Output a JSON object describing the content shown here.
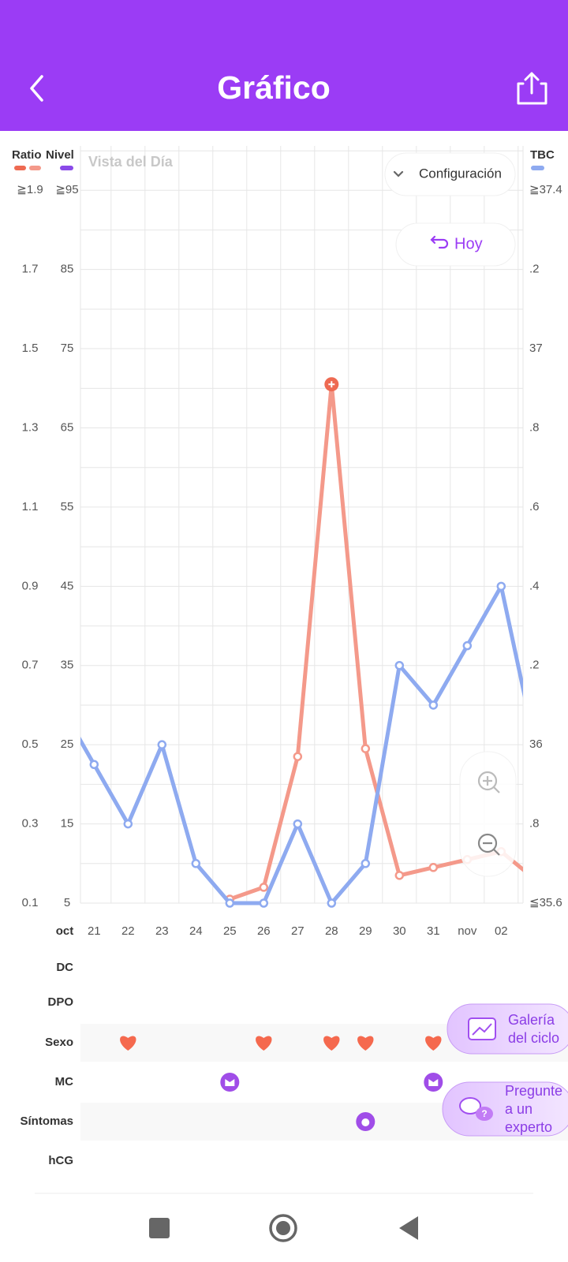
{
  "header": {
    "title": "Gráfico"
  },
  "buttons": {
    "config": "Configuración",
    "today": "Hoy",
    "view": "Vista del Día",
    "gallery": [
      "Galería",
      "del ciclo"
    ],
    "expert": [
      "Pregunte",
      "a un",
      "experto"
    ]
  },
  "chart_data": {
    "type": "line",
    "month_label": "oct",
    "categories": [
      null,
      "21",
      "22",
      "23",
      "24",
      "25",
      "26",
      "27",
      "28",
      "29",
      "30",
      "31",
      "nov",
      "02",
      null
    ],
    "y_label": "Ratio",
    "ylim": [
      0.1,
      2.0
    ],
    "yticks": [
      {
        "value": 1.9,
        "label": "≧1.9"
      },
      1.7,
      1.5,
      1.3,
      1.1,
      0.9,
      0.7,
      0.5,
      0.3,
      0.1
    ],
    "level_axis": {
      "label": "Nivel",
      "color": "#8a4ae8",
      "lim": [
        5,
        100
      ],
      "ticks": [
        {
          "value": 95,
          "label": "≧95"
        },
        85,
        75,
        65,
        55,
        45,
        35,
        25,
        15,
        5
      ]
    },
    "y2_label": "TBC",
    "y2lim": [
      35.6,
      37.5
    ],
    "y2ticks": [
      {
        "value": 37.4,
        "label": "≧37.4"
      },
      {
        "value": 37.2,
        "label": ".2"
      },
      37,
      {
        "value": 36.8,
        "label": ".8"
      },
      {
        "value": 36.6,
        "label": ".6"
      },
      {
        "value": 36.4,
        "label": ".4"
      },
      {
        "value": 36.2,
        "label": ".2"
      },
      36,
      {
        "value": 35.8,
        "label": ".8"
      },
      {
        "value": 35.6,
        "label": "≦35.6"
      }
    ],
    "grid": true,
    "series": [
      {
        "name": "Ratio",
        "color": "#f4998a",
        "peak_color": "#ee6a52",
        "values": [
          null,
          null,
          null,
          null,
          null,
          0.11,
          0.14,
          0.47,
          1.41,
          0.49,
          0.17,
          0.19,
          0.21,
          0.23,
          0.16
        ]
      },
      {
        "name": "TBC",
        "color": "#8eaaf0",
        "axis": "y2",
        "values": [
          36.1,
          35.95,
          35.8,
          36.0,
          35.7,
          35.6,
          35.6,
          35.8,
          35.6,
          35.7,
          36.2,
          36.1,
          36.25,
          36.4,
          36.0
        ]
      }
    ],
    "rows": [
      {
        "label": "DC"
      },
      {
        "label": "DPO"
      },
      {
        "label": "Sexo",
        "icon": "heart",
        "marks": [
          2,
          6,
          8,
          9,
          11
        ]
      },
      {
        "label": "MC",
        "icon": "mc",
        "marks": [
          5,
          11
        ]
      },
      {
        "label": "Síntomas",
        "icon": "symptom",
        "marks": [
          9
        ]
      },
      {
        "label": "hCG"
      }
    ]
  }
}
